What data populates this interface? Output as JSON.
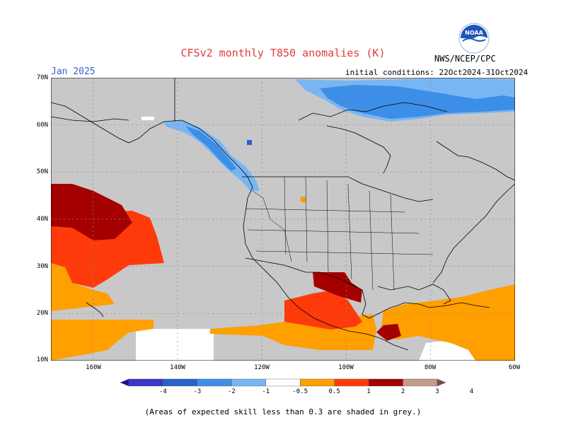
{
  "title": "CFSv2 monthly T850 anomalies (K)",
  "agency": "NWS/NCEP/CPC",
  "logo_text": "NOAA",
  "valid_month": "Jan 2025",
  "initial_conditions": "initial conditions: 22Oct2024-31Oct2024",
  "lat_labels": [
    "70N",
    "60N",
    "50N",
    "40N",
    "30N",
    "20N",
    "10N"
  ],
  "lon_labels": [
    "160W",
    "140W",
    "120W",
    "100W",
    "80W",
    "60W"
  ],
  "colorbar": {
    "labels": [
      "-4",
      "-3",
      "-2",
      "-1",
      "-0.5",
      "0.5",
      "1",
      "2",
      "3",
      "4"
    ],
    "colors": [
      "#1c0f8e",
      "#3a36c8",
      "#2a62cc",
      "#3d8ee6",
      "#78b6f3",
      "#ffffff",
      "#ff9f00",
      "#ff3a0a",
      "#a40000",
      "#c49a8a",
      "#7a4d3d"
    ]
  },
  "footer": "(Areas of expected skill less than 0.3 are shaded in grey.)",
  "colors": {
    "skill_grey": "#c8c8c8",
    "orange": "#ff9f00",
    "red": "#ff3a0a",
    "dark_red": "#a40000",
    "light_blue": "#78b6f3",
    "blue": "#3d8ee6",
    "title_red": "#e03c3c"
  }
}
